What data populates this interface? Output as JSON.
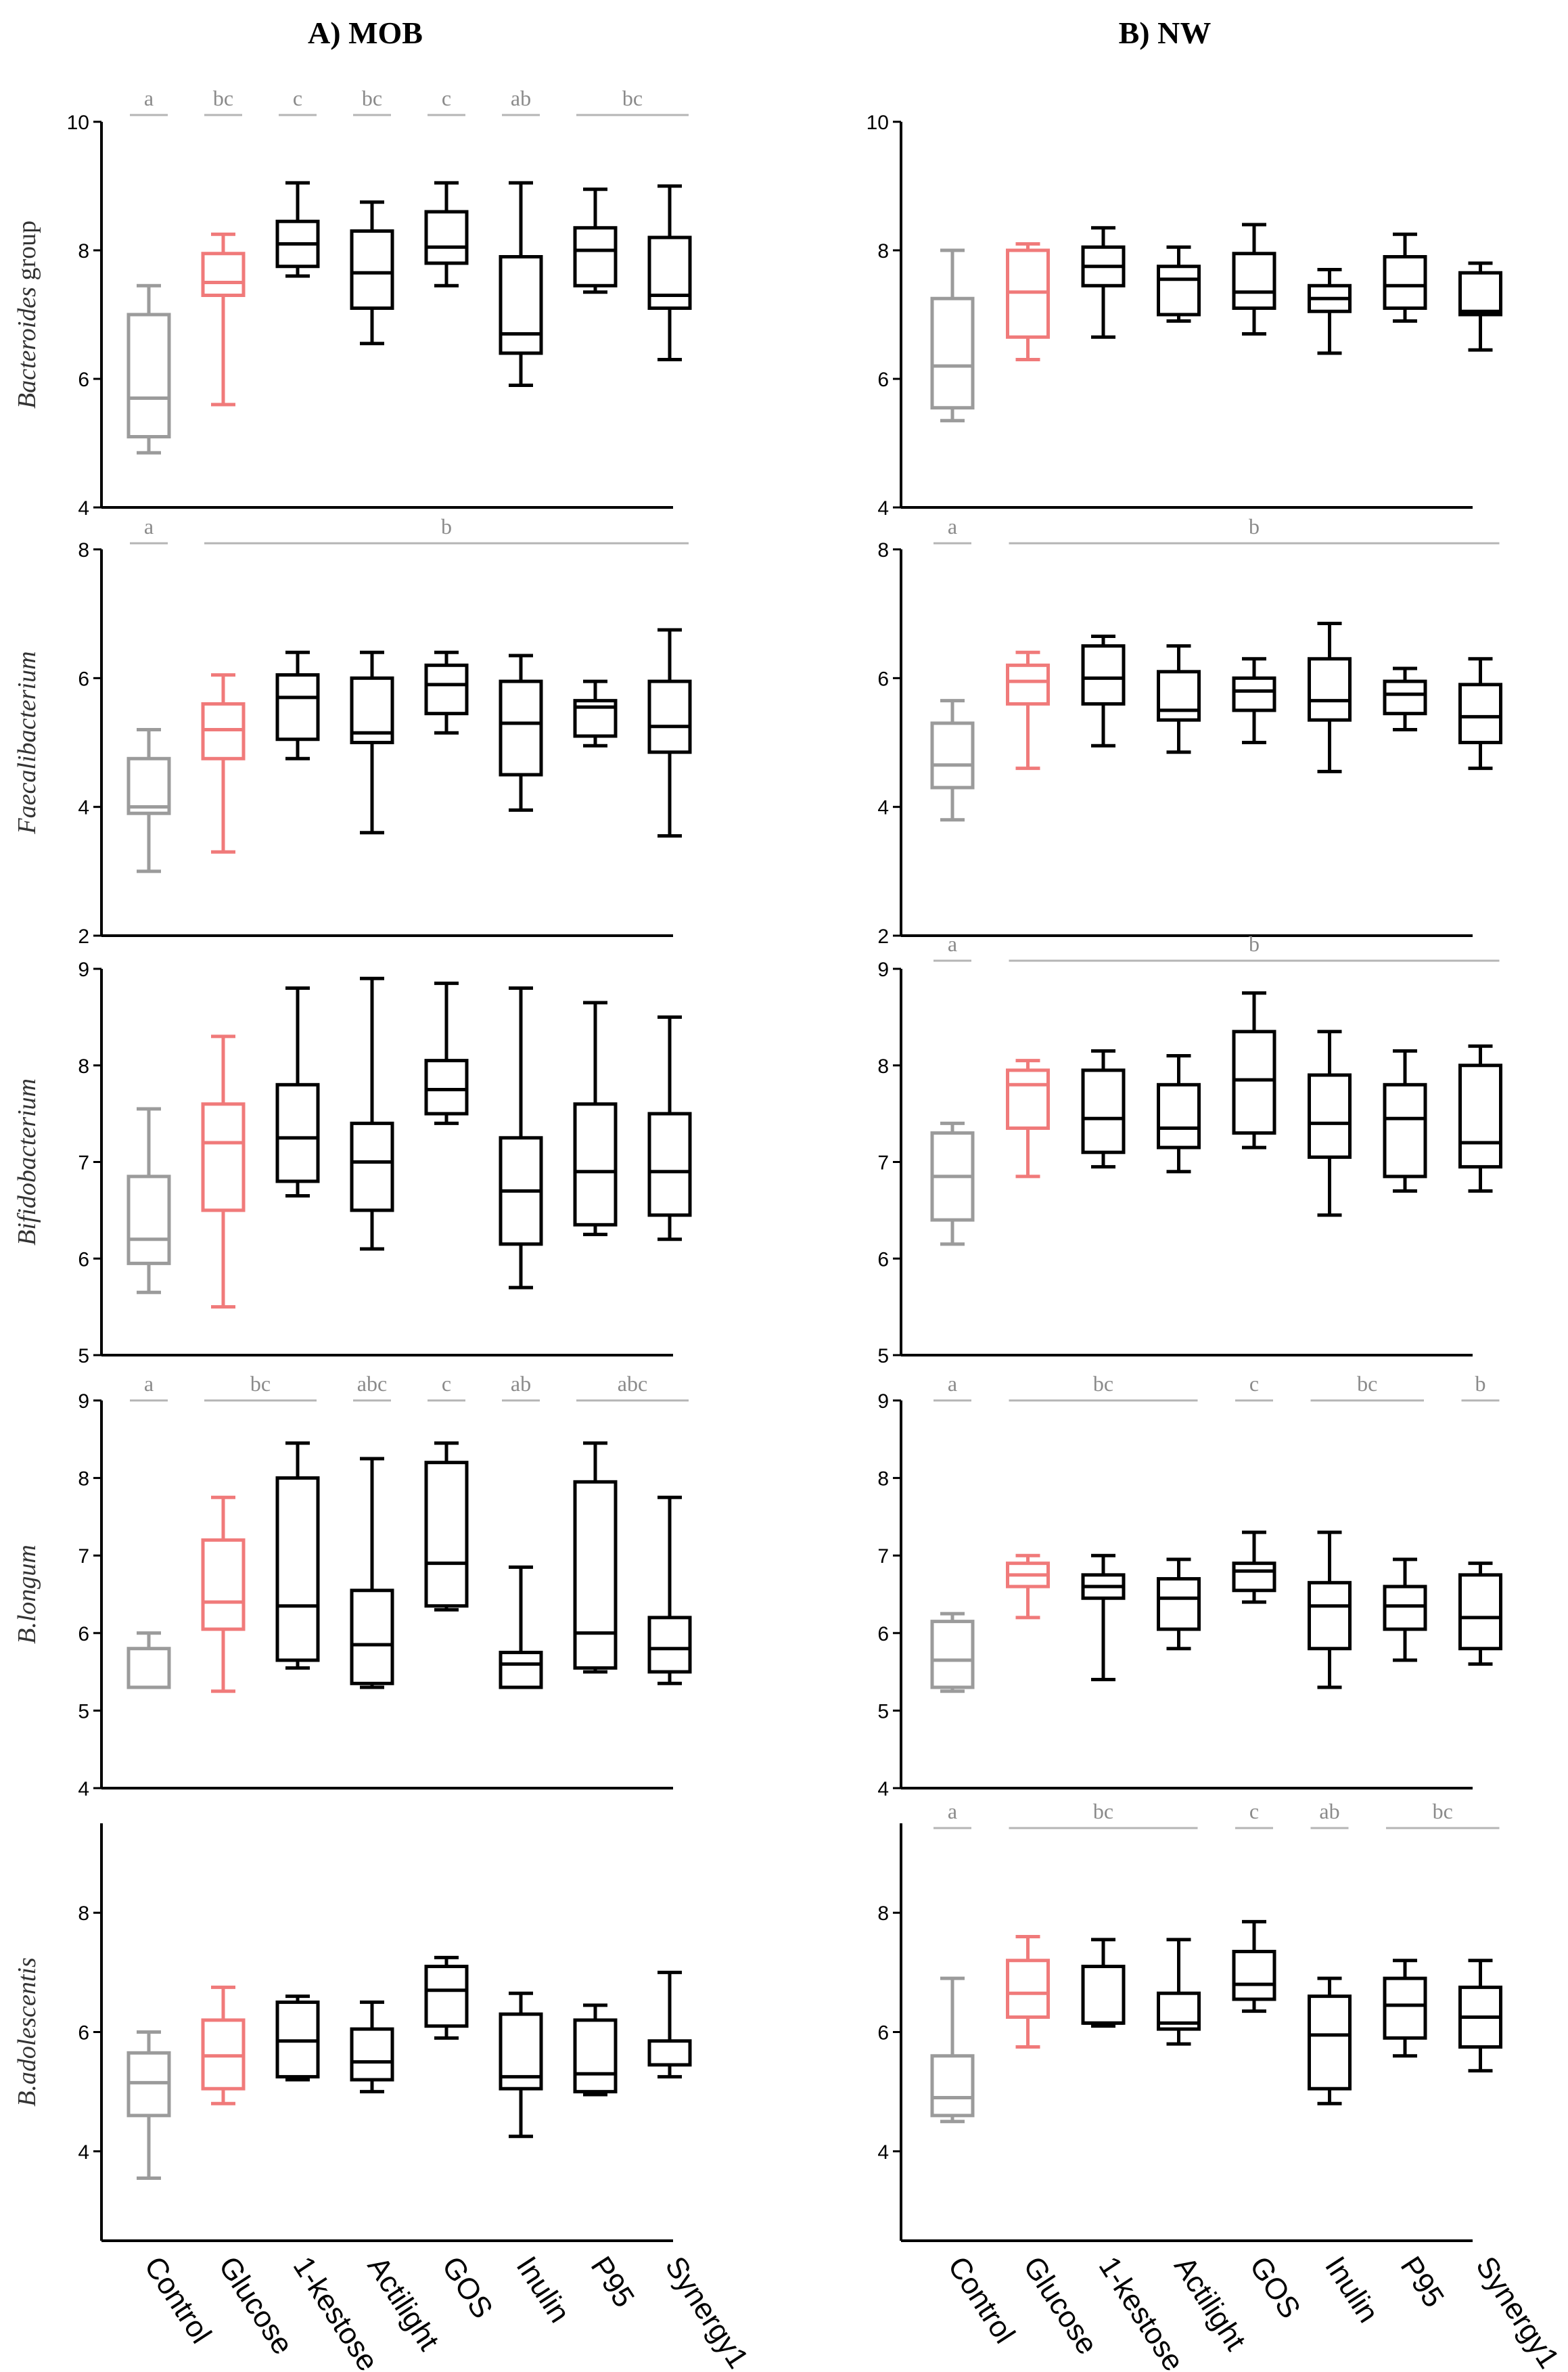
{
  "figure": {
    "panel_titles": {
      "MOB": "A)  MOB",
      "NW": "B) NW"
    },
    "categories": [
      "Control",
      "Glucose",
      "1-kestose",
      "Actilight",
      "GOS",
      "Inulin",
      "P95",
      "Synergy1"
    ],
    "colors": [
      "#9b9b9b",
      "#f07a7a",
      "#000000",
      "#000000",
      "#000000",
      "#000000",
      "#000000",
      "#000000"
    ]
  },
  "chart_data": [
    {
      "type": "box",
      "panel": "MOB",
      "row": 0,
      "ylabel": "Bacteroides",
      "ylabel_suffix": " group",
      "ylim": [
        4,
        10
      ],
      "yticks": [
        4,
        6,
        8,
        10
      ],
      "series": [
        {
          "name": "Control",
          "min": 4.85,
          "q1": 5.1,
          "median": 5.7,
          "q3": 7.0,
          "max": 7.45
        },
        {
          "name": "Glucose",
          "min": 5.6,
          "q1": 7.3,
          "median": 7.5,
          "q3": 7.95,
          "max": 8.25
        },
        {
          "name": "1-kestose",
          "min": 7.6,
          "q1": 7.75,
          "median": 8.1,
          "q3": 8.45,
          "max": 9.05
        },
        {
          "name": "Actilight",
          "min": 6.55,
          "q1": 7.1,
          "median": 7.65,
          "q3": 8.3,
          "max": 8.75
        },
        {
          "name": "GOS",
          "min": 7.45,
          "q1": 7.8,
          "median": 8.05,
          "q3": 8.6,
          "max": 9.05
        },
        {
          "name": "Inulin",
          "min": 5.9,
          "q1": 6.4,
          "median": 6.7,
          "q3": 7.9,
          "max": 9.05
        },
        {
          "name": "P95",
          "min": 7.35,
          "q1": 7.45,
          "median": 8.0,
          "q3": 8.35,
          "max": 8.95
        },
        {
          "name": "Synergy1",
          "min": 6.3,
          "q1": 7.1,
          "median": 7.3,
          "q3": 8.2,
          "max": 9.0
        }
      ],
      "annotations": [
        {
          "label": "a",
          "from": 0,
          "to": 0
        },
        {
          "label": "bc",
          "from": 1,
          "to": 1
        },
        {
          "label": "c",
          "from": 2,
          "to": 2
        },
        {
          "label": "bc",
          "from": 3,
          "to": 3
        },
        {
          "label": "c",
          "from": 4,
          "to": 4
        },
        {
          "label": "ab",
          "from": 5,
          "to": 5
        },
        {
          "label": "bc",
          "from": 6,
          "to": 7
        }
      ]
    },
    {
      "type": "box",
      "panel": "MOB",
      "row": 1,
      "ylabel": "Faecalibacterium",
      "ylabel_suffix": "",
      "ylim": [
        2,
        8
      ],
      "yticks": [
        2,
        4,
        6,
        8
      ],
      "series": [
        {
          "name": "Control",
          "min": 3.0,
          "q1": 3.9,
          "median": 4.0,
          "q3": 4.75,
          "max": 5.2
        },
        {
          "name": "Glucose",
          "min": 3.3,
          "q1": 4.75,
          "median": 5.2,
          "q3": 5.6,
          "max": 6.05
        },
        {
          "name": "1-kestose",
          "min": 4.75,
          "q1": 5.05,
          "median": 5.7,
          "q3": 6.05,
          "max": 6.4
        },
        {
          "name": "Actilight",
          "min": 3.6,
          "q1": 5.0,
          "median": 5.15,
          "q3": 6.0,
          "max": 6.4
        },
        {
          "name": "GOS",
          "min": 5.15,
          "q1": 5.45,
          "median": 5.9,
          "q3": 6.2,
          "max": 6.4
        },
        {
          "name": "Inulin",
          "min": 3.95,
          "q1": 4.5,
          "median": 5.3,
          "q3": 5.95,
          "max": 6.35
        },
        {
          "name": "P95",
          "min": 4.95,
          "q1": 5.1,
          "median": 5.55,
          "q3": 5.65,
          "max": 5.95
        },
        {
          "name": "Synergy1",
          "min": 3.55,
          "q1": 4.85,
          "median": 5.25,
          "q3": 5.95,
          "max": 6.75
        }
      ],
      "annotations": [
        {
          "label": "a",
          "from": 0,
          "to": 0
        },
        {
          "label": "b",
          "from": 1,
          "to": 7
        }
      ]
    },
    {
      "type": "box",
      "panel": "MOB",
      "row": 2,
      "ylabel": "Bifidobacterium",
      "ylabel_suffix": "",
      "ylim": [
        5,
        9
      ],
      "yticks": [
        5,
        6,
        7,
        8,
        9
      ],
      "series": [
        {
          "name": "Control",
          "min": 5.65,
          "q1": 5.95,
          "median": 6.2,
          "q3": 6.85,
          "max": 7.55
        },
        {
          "name": "Glucose",
          "min": 5.5,
          "q1": 6.5,
          "median": 7.2,
          "q3": 7.6,
          "max": 8.3
        },
        {
          "name": "1-kestose",
          "min": 6.65,
          "q1": 6.8,
          "median": 7.25,
          "q3": 7.8,
          "max": 8.8
        },
        {
          "name": "Actilight",
          "min": 6.1,
          "q1": 6.5,
          "median": 7.0,
          "q3": 7.4,
          "max": 8.9
        },
        {
          "name": "GOS",
          "min": 7.4,
          "q1": 7.5,
          "median": 7.75,
          "q3": 8.05,
          "max": 8.85
        },
        {
          "name": "Inulin",
          "min": 5.7,
          "q1": 6.15,
          "median": 6.7,
          "q3": 7.25,
          "max": 8.8
        },
        {
          "name": "P95",
          "min": 6.25,
          "q1": 6.35,
          "median": 6.9,
          "q3": 7.6,
          "max": 8.65
        },
        {
          "name": "Synergy1",
          "min": 6.2,
          "q1": 6.45,
          "median": 6.9,
          "q3": 7.5,
          "max": 8.5
        }
      ],
      "annotations": []
    },
    {
      "type": "box",
      "panel": "MOB",
      "row": 3,
      "ylabel": "B.longum",
      "ylabel_suffix": "",
      "ylim": [
        4,
        9
      ],
      "yticks": [
        4,
        5,
        6,
        7,
        8,
        9
      ],
      "series": [
        {
          "name": "Control",
          "min": 5.3,
          "q1": 5.3,
          "median": 5.3,
          "q3": 5.8,
          "max": 6.0
        },
        {
          "name": "Glucose",
          "min": 5.25,
          "q1": 6.05,
          "median": 6.4,
          "q3": 7.2,
          "max": 7.75
        },
        {
          "name": "1-kestose",
          "min": 5.55,
          "q1": 5.65,
          "median": 6.35,
          "q3": 8.0,
          "max": 8.45
        },
        {
          "name": "Actilight",
          "min": 5.3,
          "q1": 5.35,
          "median": 5.85,
          "q3": 6.55,
          "max": 8.25
        },
        {
          "name": "GOS",
          "min": 6.3,
          "q1": 6.35,
          "median": 6.9,
          "q3": 8.2,
          "max": 8.45
        },
        {
          "name": "Inulin",
          "min": 5.3,
          "q1": 5.3,
          "median": 5.6,
          "q3": 5.75,
          "max": 6.85
        },
        {
          "name": "P95",
          "min": 5.5,
          "q1": 5.55,
          "median": 6.0,
          "q3": 7.95,
          "max": 8.45
        },
        {
          "name": "Synergy1",
          "min": 5.35,
          "q1": 5.5,
          "median": 5.8,
          "q3": 6.2,
          "max": 7.75
        }
      ],
      "annotations": [
        {
          "label": "a",
          "from": 0,
          "to": 0
        },
        {
          "label": "bc",
          "from": 1,
          "to": 2
        },
        {
          "label": "abc",
          "from": 3,
          "to": 3
        },
        {
          "label": "c",
          "from": 4,
          "to": 4
        },
        {
          "label": "ab",
          "from": 5,
          "to": 5
        },
        {
          "label": "abc",
          "from": 6,
          "to": 7
        }
      ]
    },
    {
      "type": "box",
      "panel": "MOB",
      "row": 4,
      "ylabel": "B.adolescentis",
      "ylabel_suffix": "",
      "ylim": [
        2.5,
        9.5
      ],
      "yticks": [
        4,
        6,
        8
      ],
      "series": [
        {
          "name": "Control",
          "min": 3.55,
          "q1": 4.6,
          "median": 5.15,
          "q3": 5.65,
          "max": 6.0
        },
        {
          "name": "Glucose",
          "min": 4.8,
          "q1": 5.05,
          "median": 5.6,
          "q3": 6.2,
          "max": 6.75
        },
        {
          "name": "1-kestose",
          "min": 5.2,
          "q1": 5.25,
          "median": 5.85,
          "q3": 6.5,
          "max": 6.6
        },
        {
          "name": "Actilight",
          "min": 5.0,
          "q1": 5.2,
          "median": 5.5,
          "q3": 6.05,
          "max": 6.5
        },
        {
          "name": "GOS",
          "min": 5.9,
          "q1": 6.1,
          "median": 6.7,
          "q3": 7.1,
          "max": 7.25
        },
        {
          "name": "Inulin",
          "min": 4.25,
          "q1": 5.05,
          "median": 5.25,
          "q3": 6.3,
          "max": 6.65
        },
        {
          "name": "P95",
          "min": 4.95,
          "q1": 5.0,
          "median": 5.3,
          "q3": 6.2,
          "max": 6.45
        },
        {
          "name": "Synergy1",
          "min": 5.25,
          "q1": 5.45,
          "median": 5.45,
          "q3": 5.85,
          "max": 7.0
        }
      ],
      "annotations": []
    },
    {
      "type": "box",
      "panel": "NW",
      "row": 0,
      "ylabel": "",
      "ylabel_suffix": "",
      "ylim": [
        4,
        10
      ],
      "yticks": [
        4,
        6,
        8,
        10
      ],
      "series": [
        {
          "name": "Control",
          "min": 5.35,
          "q1": 5.55,
          "median": 6.2,
          "q3": 7.25,
          "max": 8.0
        },
        {
          "name": "Glucose",
          "min": 6.3,
          "q1": 6.65,
          "median": 7.35,
          "q3": 8.0,
          "max": 8.1
        },
        {
          "name": "1-kestose",
          "min": 6.65,
          "q1": 7.45,
          "median": 7.75,
          "q3": 8.05,
          "max": 8.35
        },
        {
          "name": "Actilight",
          "min": 6.9,
          "q1": 7.0,
          "median": 7.55,
          "q3": 7.75,
          "max": 8.05
        },
        {
          "name": "GOS",
          "min": 6.7,
          "q1": 7.1,
          "median": 7.35,
          "q3": 7.95,
          "max": 8.4
        },
        {
          "name": "Inulin",
          "min": 6.4,
          "q1": 7.05,
          "median": 7.25,
          "q3": 7.45,
          "max": 7.7
        },
        {
          "name": "P95",
          "min": 6.9,
          "q1": 7.1,
          "median": 7.45,
          "q3": 7.9,
          "max": 8.25
        },
        {
          "name": "Synergy1",
          "min": 6.45,
          "q1": 7.0,
          "median": 7.05,
          "q3": 7.65,
          "max": 7.8
        }
      ],
      "annotations": []
    },
    {
      "type": "box",
      "panel": "NW",
      "row": 1,
      "ylabel": "",
      "ylabel_suffix": "",
      "ylim": [
        2,
        8
      ],
      "yticks": [
        2,
        4,
        6,
        8
      ],
      "series": [
        {
          "name": "Control",
          "min": 3.8,
          "q1": 4.3,
          "median": 4.65,
          "q3": 5.3,
          "max": 5.65
        },
        {
          "name": "Glucose",
          "min": 4.6,
          "q1": 5.6,
          "median": 5.95,
          "q3": 6.2,
          "max": 6.4
        },
        {
          "name": "1-kestose",
          "min": 4.95,
          "q1": 5.6,
          "median": 6.0,
          "q3": 6.5,
          "max": 6.65
        },
        {
          "name": "Actilight",
          "min": 4.85,
          "q1": 5.35,
          "median": 5.5,
          "q3": 6.1,
          "max": 6.5
        },
        {
          "name": "GOS",
          "min": 5.0,
          "q1": 5.5,
          "median": 5.8,
          "q3": 6.0,
          "max": 6.3
        },
        {
          "name": "Inulin",
          "min": 4.55,
          "q1": 5.35,
          "median": 5.65,
          "q3": 6.3,
          "max": 6.85
        },
        {
          "name": "P95",
          "min": 5.2,
          "q1": 5.45,
          "median": 5.75,
          "q3": 5.95,
          "max": 6.15
        },
        {
          "name": "Synergy1",
          "min": 4.6,
          "q1": 5.0,
          "median": 5.4,
          "q3": 5.9,
          "max": 6.3
        }
      ],
      "annotations": [
        {
          "label": "a",
          "from": 0,
          "to": 0
        },
        {
          "label": "b",
          "from": 1,
          "to": 7
        }
      ]
    },
    {
      "type": "box",
      "panel": "NW",
      "row": 2,
      "ylabel": "",
      "ylabel_suffix": "",
      "ylim": [
        5,
        9
      ],
      "yticks": [
        5,
        6,
        7,
        8,
        9
      ],
      "series": [
        {
          "name": "Control",
          "min": 6.15,
          "q1": 6.4,
          "median": 6.85,
          "q3": 7.3,
          "max": 7.4
        },
        {
          "name": "Glucose",
          "min": 6.85,
          "q1": 7.35,
          "median": 7.8,
          "q3": 7.95,
          "max": 8.05
        },
        {
          "name": "1-kestose",
          "min": 6.95,
          "q1": 7.1,
          "median": 7.45,
          "q3": 7.95,
          "max": 8.15
        },
        {
          "name": "Actilight",
          "min": 6.9,
          "q1": 7.15,
          "median": 7.35,
          "q3": 7.8,
          "max": 8.1
        },
        {
          "name": "GOS",
          "min": 7.15,
          "q1": 7.3,
          "median": 7.85,
          "q3": 8.35,
          "max": 8.75
        },
        {
          "name": "Inulin",
          "min": 6.45,
          "q1": 7.05,
          "median": 7.4,
          "q3": 7.9,
          "max": 8.35
        },
        {
          "name": "P95",
          "min": 6.7,
          "q1": 6.85,
          "median": 7.45,
          "q3": 7.8,
          "max": 8.15
        },
        {
          "name": "Synergy1",
          "min": 6.7,
          "q1": 6.95,
          "median": 7.2,
          "q3": 8.0,
          "max": 8.2
        }
      ],
      "annotations": [
        {
          "label": "a",
          "from": 0,
          "to": 0
        },
        {
          "label": "b",
          "from": 1,
          "to": 7
        }
      ]
    },
    {
      "type": "box",
      "panel": "NW",
      "row": 3,
      "ylabel": "",
      "ylabel_suffix": "",
      "ylim": [
        4,
        9
      ],
      "yticks": [
        4,
        5,
        6,
        7,
        8,
        9
      ],
      "series": [
        {
          "name": "Control",
          "min": 5.25,
          "q1": 5.3,
          "median": 5.65,
          "q3": 6.15,
          "max": 6.25
        },
        {
          "name": "Glucose",
          "min": 6.2,
          "q1": 6.6,
          "median": 6.75,
          "q3": 6.9,
          "max": 7.0
        },
        {
          "name": "1-kestose",
          "min": 5.4,
          "q1": 6.45,
          "median": 6.6,
          "q3": 6.75,
          "max": 7.0
        },
        {
          "name": "Actilight",
          "min": 5.8,
          "q1": 6.05,
          "median": 6.45,
          "q3": 6.7,
          "max": 6.95
        },
        {
          "name": "GOS",
          "min": 6.4,
          "q1": 6.55,
          "median": 6.8,
          "q3": 6.9,
          "max": 7.3
        },
        {
          "name": "Inulin",
          "min": 5.3,
          "q1": 5.8,
          "median": 6.35,
          "q3": 6.65,
          "max": 7.3
        },
        {
          "name": "P95",
          "min": 5.65,
          "q1": 6.05,
          "median": 6.35,
          "q3": 6.6,
          "max": 6.95
        },
        {
          "name": "Synergy1",
          "min": 5.6,
          "q1": 5.8,
          "median": 6.2,
          "q3": 6.75,
          "max": 6.9
        }
      ],
      "annotations": [
        {
          "label": "a",
          "from": 0,
          "to": 0
        },
        {
          "label": "bc",
          "from": 1,
          "to": 3
        },
        {
          "label": "c",
          "from": 4,
          "to": 4
        },
        {
          "label": "bc",
          "from": 5,
          "to": 6
        },
        {
          "label": "b",
          "from": 7,
          "to": 7
        }
      ]
    },
    {
      "type": "box",
      "panel": "NW",
      "row": 4,
      "ylabel": "",
      "ylabel_suffix": "",
      "ylim": [
        2.5,
        9.5
      ],
      "yticks": [
        4,
        6,
        8
      ],
      "series": [
        {
          "name": "Control",
          "min": 4.5,
          "q1": 4.6,
          "median": 4.9,
          "q3": 5.6,
          "max": 6.9
        },
        {
          "name": "Glucose",
          "min": 5.75,
          "q1": 6.25,
          "median": 6.65,
          "q3": 7.2,
          "max": 7.6
        },
        {
          "name": "1-kestose",
          "min": 6.1,
          "q1": 6.15,
          "median": 6.15,
          "q3": 7.1,
          "max": 7.55
        },
        {
          "name": "Actilight",
          "min": 5.8,
          "q1": 6.05,
          "median": 6.15,
          "q3": 6.65,
          "max": 7.55
        },
        {
          "name": "GOS",
          "min": 6.35,
          "q1": 6.55,
          "median": 6.8,
          "q3": 7.35,
          "max": 7.85
        },
        {
          "name": "Inulin",
          "min": 4.8,
          "q1": 5.05,
          "median": 5.95,
          "q3": 6.6,
          "max": 6.9
        },
        {
          "name": "P95",
          "min": 5.6,
          "q1": 5.9,
          "median": 6.45,
          "q3": 6.9,
          "max": 7.2
        },
        {
          "name": "Synergy1",
          "min": 5.35,
          "q1": 5.75,
          "median": 6.25,
          "q3": 6.75,
          "max": 7.2
        }
      ],
      "annotations": [
        {
          "label": "a",
          "from": 0,
          "to": 0
        },
        {
          "label": "bc",
          "from": 1,
          "to": 3
        },
        {
          "label": "c",
          "from": 4,
          "to": 4
        },
        {
          "label": "ab",
          "from": 5,
          "to": 5
        },
        {
          "label": "bc",
          "from": 6,
          "to": 7
        }
      ]
    }
  ]
}
